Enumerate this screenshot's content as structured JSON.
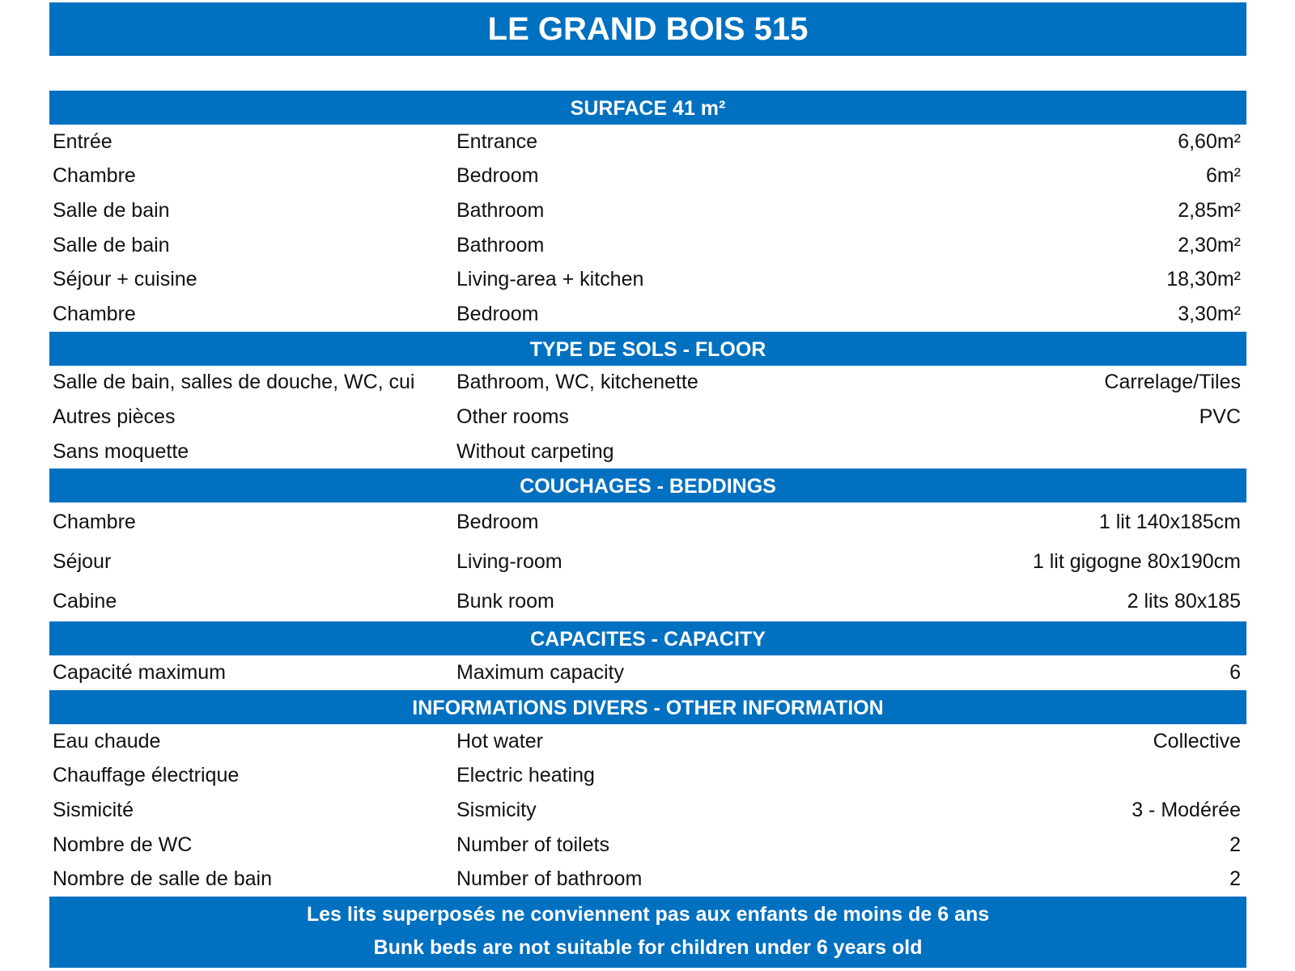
{
  "title": "LE GRAND BOIS 515",
  "sections": [
    {
      "heading": "SURFACE 41 m²",
      "rows": [
        [
          "Entrée",
          "Entrance",
          "6,60m²"
        ],
        [
          "Chambre",
          "Bedroom",
          "6m²"
        ],
        [
          "Salle de bain",
          "Bathroom",
          "2,85m²"
        ],
        [
          "Salle de bain",
          "Bathroom",
          "2,30m²"
        ],
        [
          "Séjour + cuisine",
          "Living-area + kitchen",
          "18,30m²"
        ],
        [
          "Chambre",
          "Bedroom",
          "3,30m²"
        ]
      ]
    },
    {
      "heading": "TYPE DE SOLS - FLOOR",
      "rows": [
        [
          "Salle de bain, salles de douche, WC, cui",
          "Bathroom, WC, kitchenette",
          "Carrelage/Tiles"
        ],
        [
          "Autres pièces",
          "Other rooms",
          "PVC"
        ],
        [
          "Sans moquette",
          "Without carpeting",
          null
        ]
      ]
    },
    {
      "heading": "COUCHAGES - BEDDINGS",
      "rows": [
        [
          "Chambre",
          "Bedroom",
          "1 lit 140x185cm"
        ],
        [
          "Séjour",
          "Living-room",
          "1 lit gigogne 80x190cm"
        ],
        [
          "Cabine",
          "Bunk room",
          "2 lits 80x185"
        ]
      ]
    },
    {
      "heading": "CAPACITES - CAPACITY",
      "rows": [
        [
          "Capacité maximum",
          "Maximum capacity",
          "6"
        ]
      ]
    },
    {
      "heading": "INFORMATIONS DIVERS - OTHER INFORMATION",
      "rows": [
        [
          "Eau chaude",
          "Hot water",
          "Collective"
        ],
        [
          "Chauffage électrique",
          "Electric heating",
          null
        ],
        [
          "Sismicité",
          "Sismicity",
          "3 - Modérée"
        ],
        [
          "Nombre de WC",
          "Number of toilets",
          "2"
        ],
        [
          "Nombre de salle de bain",
          "Number of bathroom",
          "2"
        ]
      ]
    }
  ],
  "footer": [
    "Les lits superposés ne conviennent pas aux enfants de moins de 6 ans",
    "Bunk beds are not suitable for children under 6 years old"
  ]
}
